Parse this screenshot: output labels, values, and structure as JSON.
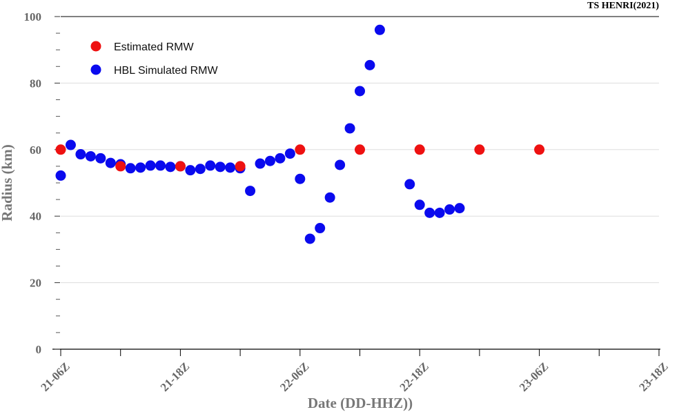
{
  "chart_data": {
    "type": "scatter",
    "title": "TS HENRI(2021)",
    "xlabel": "Date (DD-HHZ))",
    "ylabel": "Radius (km)",
    "ylim": [
      0,
      100
    ],
    "xlim": [
      0,
      60
    ],
    "x_unit": "hours since 21-06Z",
    "x_ticks": [
      {
        "value": 0,
        "label": "21-06Z"
      },
      {
        "value": 12,
        "label": "21-18Z"
      },
      {
        "value": 24,
        "label": "22-06Z"
      },
      {
        "value": 36,
        "label": "22-18Z"
      },
      {
        "value": 48,
        "label": "23-06Z"
      },
      {
        "value": 60,
        "label": "23-18Z"
      }
    ],
    "y_ticks": [
      0,
      20,
      40,
      60,
      80,
      100
    ],
    "legend_position": "top-left",
    "series": [
      {
        "name": "Estimated RMW",
        "color": "#ee1111",
        "points": [
          {
            "x": 0,
            "y": 60
          },
          {
            "x": 6,
            "y": 55
          },
          {
            "x": 12,
            "y": 55
          },
          {
            "x": 18,
            "y": 55
          },
          {
            "x": 24,
            "y": 60
          },
          {
            "x": 30,
            "y": 60
          },
          {
            "x": 36,
            "y": 60
          },
          {
            "x": 42,
            "y": 60
          },
          {
            "x": 48,
            "y": 60
          }
        ]
      },
      {
        "name": "HBL Simulated RMW",
        "color": "#0a0aee",
        "points": [
          {
            "x": 0,
            "y": 52.2
          },
          {
            "x": 1,
            "y": 61.4
          },
          {
            "x": 2,
            "y": 58.6
          },
          {
            "x": 3,
            "y": 58
          },
          {
            "x": 4,
            "y": 57.4
          },
          {
            "x": 5,
            "y": 56
          },
          {
            "x": 6,
            "y": 55.6
          },
          {
            "x": 7,
            "y": 54.4
          },
          {
            "x": 8,
            "y": 54.6
          },
          {
            "x": 9,
            "y": 55.2
          },
          {
            "x": 10,
            "y": 55.2
          },
          {
            "x": 11,
            "y": 54.8
          },
          {
            "x": 12,
            "y": 55
          },
          {
            "x": 13,
            "y": 53.8
          },
          {
            "x": 14,
            "y": 54.2
          },
          {
            "x": 15,
            "y": 55.2
          },
          {
            "x": 16,
            "y": 54.8
          },
          {
            "x": 17,
            "y": 54.6
          },
          {
            "x": 18,
            "y": 54.4
          },
          {
            "x": 19,
            "y": 47.6
          },
          {
            "x": 20,
            "y": 55.8
          },
          {
            "x": 21,
            "y": 56.6
          },
          {
            "x": 22,
            "y": 57.4
          },
          {
            "x": 23,
            "y": 58.8
          },
          {
            "x": 24,
            "y": 51.2
          },
          {
            "x": 25,
            "y": 33.2
          },
          {
            "x": 26,
            "y": 36.4
          },
          {
            "x": 27,
            "y": 45.6
          },
          {
            "x": 28,
            "y": 55.4
          },
          {
            "x": 29,
            "y": 66.4
          },
          {
            "x": 30,
            "y": 77.6
          },
          {
            "x": 31,
            "y": 85.4
          },
          {
            "x": 32,
            "y": 96
          },
          {
            "x": 35,
            "y": 49.6
          },
          {
            "x": 36,
            "y": 43.4
          },
          {
            "x": 37,
            "y": 41
          },
          {
            "x": 38,
            "y": 41
          },
          {
            "x": 39,
            "y": 42
          },
          {
            "x": 40,
            "y": 42.4
          }
        ]
      }
    ]
  }
}
